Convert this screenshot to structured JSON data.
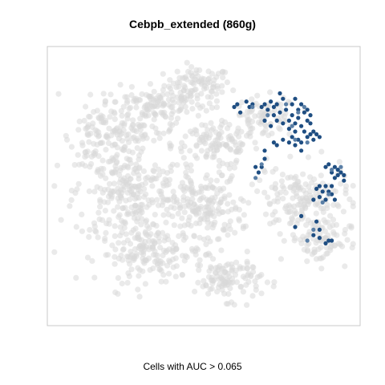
{
  "chart_data": {
    "type": "scatter",
    "title": "Cebpb_extended (860g)",
    "xlabel": "Cells with AUC > 0.065",
    "ylabel": "",
    "axes_visible": false,
    "grid": false,
    "legend": "none",
    "colors": {
      "background_cells": "#d9d9d9",
      "high_auc_cells": "#1f4e82",
      "mid_auc_cells": "#5a7fa6",
      "frame": "#c8c8c8"
    },
    "series": [
      {
        "role": "background_cells",
        "color": "#d9d9d9",
        "clusters": [
          {
            "cx": 0.48,
            "cy": 0.87,
            "rx": 0.1,
            "ry": 0.06,
            "n": 90
          },
          {
            "cx": 0.33,
            "cy": 0.8,
            "rx": 0.16,
            "ry": 0.06,
            "n": 130
          },
          {
            "cx": 0.28,
            "cy": 0.7,
            "rx": 0.12,
            "ry": 0.05,
            "n": 70
          },
          {
            "cx": 0.54,
            "cy": 0.65,
            "rx": 0.13,
            "ry": 0.07,
            "n": 110
          },
          {
            "cx": 0.7,
            "cy": 0.75,
            "rx": 0.1,
            "ry": 0.07,
            "n": 80
          },
          {
            "cx": 0.15,
            "cy": 0.68,
            "rx": 0.08,
            "ry": 0.09,
            "n": 70
          },
          {
            "cx": 0.25,
            "cy": 0.48,
            "rx": 0.16,
            "ry": 0.16,
            "n": 260
          },
          {
            "cx": 0.5,
            "cy": 0.42,
            "rx": 0.11,
            "ry": 0.13,
            "n": 180
          },
          {
            "cx": 0.33,
            "cy": 0.25,
            "rx": 0.16,
            "ry": 0.09,
            "n": 170
          },
          {
            "cx": 0.58,
            "cy": 0.16,
            "rx": 0.1,
            "ry": 0.07,
            "n": 110
          },
          {
            "cx": 0.82,
            "cy": 0.45,
            "rx": 0.14,
            "ry": 0.11,
            "n": 170
          },
          {
            "cx": 0.88,
            "cy": 0.3,
            "rx": 0.09,
            "ry": 0.08,
            "n": 80
          }
        ]
      },
      {
        "role": "high_auc_cells",
        "points": [
          [
            0.6,
            0.79
          ],
          [
            0.61,
            0.8
          ],
          [
            0.62,
            0.77
          ],
          [
            0.64,
            0.81
          ],
          [
            0.65,
            0.79
          ],
          [
            0.66,
            0.8
          ],
          [
            0.69,
            0.79
          ],
          [
            0.7,
            0.8
          ],
          [
            0.7,
            0.74
          ],
          [
            0.71,
            0.78
          ],
          [
            0.72,
            0.81
          ],
          [
            0.73,
            0.79
          ],
          [
            0.74,
            0.8
          ],
          [
            0.73,
            0.76
          ],
          [
            0.72,
            0.72
          ],
          [
            0.74,
            0.74
          ],
          [
            0.75,
            0.77
          ],
          [
            0.75,
            0.84
          ],
          [
            0.76,
            0.82
          ],
          [
            0.76,
            0.73
          ],
          [
            0.77,
            0.78
          ],
          [
            0.78,
            0.74
          ],
          [
            0.78,
            0.71
          ],
          [
            0.79,
            0.76
          ],
          [
            0.79,
            0.8
          ],
          [
            0.8,
            0.82
          ],
          [
            0.8,
            0.73
          ],
          [
            0.8,
            0.7
          ],
          [
            0.81,
            0.78
          ],
          [
            0.81,
            0.75
          ],
          [
            0.82,
            0.72
          ],
          [
            0.82,
            0.8
          ],
          [
            0.83,
            0.77
          ],
          [
            0.83,
            0.7
          ],
          [
            0.84,
            0.74
          ],
          [
            0.84,
            0.78
          ],
          [
            0.84,
            0.68
          ],
          [
            0.85,
            0.73
          ],
          [
            0.85,
            0.76
          ],
          [
            0.73,
            0.66
          ],
          [
            0.74,
            0.65
          ],
          [
            0.76,
            0.67
          ],
          [
            0.78,
            0.66
          ],
          [
            0.79,
            0.68
          ],
          [
            0.8,
            0.65
          ],
          [
            0.81,
            0.67
          ],
          [
            0.82,
            0.66
          ],
          [
            0.82,
            0.63
          ],
          [
            0.85,
            0.69
          ],
          [
            0.86,
            0.7
          ],
          [
            0.86,
            0.67
          ],
          [
            0.87,
            0.69
          ],
          [
            0.88,
            0.68
          ],
          [
            0.7,
            0.63
          ],
          [
            0.69,
            0.57
          ],
          [
            0.7,
            0.6
          ],
          [
            0.68,
            0.55
          ],
          [
            0.67,
            0.57
          ],
          [
            0.9,
            0.57
          ],
          [
            0.91,
            0.58
          ],
          [
            0.92,
            0.55
          ],
          [
            0.93,
            0.57
          ],
          [
            0.94,
            0.54
          ],
          [
            0.94,
            0.56
          ],
          [
            0.95,
            0.55
          ],
          [
            0.96,
            0.54
          ],
          [
            0.96,
            0.52
          ],
          [
            0.93,
            0.53
          ],
          [
            0.9,
            0.5
          ],
          [
            0.91,
            0.48
          ],
          [
            0.92,
            0.5
          ],
          [
            0.92,
            0.47
          ],
          [
            0.89,
            0.48
          ],
          [
            0.88,
            0.5
          ],
          [
            0.87,
            0.49
          ],
          [
            0.9,
            0.45
          ],
          [
            0.93,
            0.45
          ],
          [
            0.88,
            0.46
          ],
          [
            0.86,
            0.45
          ],
          [
            0.87,
            0.37
          ],
          [
            0.88,
            0.34
          ],
          [
            0.86,
            0.32
          ],
          [
            0.88,
            0.31
          ],
          [
            0.91,
            0.3
          ],
          [
            0.92,
            0.3
          ],
          [
            0.9,
            0.29
          ],
          [
            0.82,
            0.39
          ],
          [
            0.8,
            0.35
          ]
        ]
      },
      {
        "role": "mid_auc_cells",
        "points": [
          [
            0.66,
            0.79
          ],
          [
            0.71,
            0.76
          ],
          [
            0.77,
            0.8
          ],
          [
            0.79,
            0.72
          ],
          [
            0.83,
            0.79
          ],
          [
            0.8,
            0.67
          ],
          [
            0.84,
            0.66
          ],
          [
            0.69,
            0.58
          ],
          [
            0.92,
            0.56
          ],
          [
            0.95,
            0.57
          ],
          [
            0.91,
            0.47
          ],
          [
            0.89,
            0.44
          ],
          [
            0.86,
            0.34
          ],
          [
            0.84,
            0.3
          ],
          [
            0.67,
            0.53
          ],
          [
            0.81,
            0.77
          ]
        ]
      }
    ]
  }
}
